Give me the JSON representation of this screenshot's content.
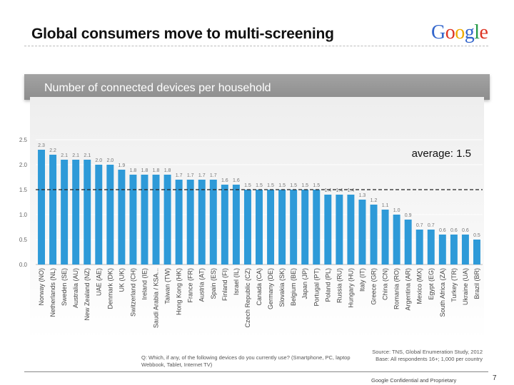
{
  "slide": {
    "title": "Global consumers move to multi-screening",
    "logo": {
      "letters": [
        "G",
        "o",
        "o",
        "g",
        "l",
        "e"
      ],
      "colors": [
        "#3366cc",
        "#dd3322",
        "#eeaa00",
        "#3366cc",
        "#229944",
        "#dd3322"
      ]
    },
    "subtitle": "Number of connected devices per household",
    "question": "Q: Which, if any, of the following devices do you currently use? (Smartphone, PC, laptop Webbook, Tablet, Internet TV)",
    "source": "Source: TNS, Global Enumeration Study, 2012",
    "base": "Base: All respondents 16+; 1,000 per country",
    "confidential": "Google Confidential and Proprietary",
    "page_number": "7"
  },
  "chart_data": {
    "type": "bar",
    "title": "Number of connected devices per household",
    "ylim": [
      0,
      2.5
    ],
    "yticks": [
      "0.0",
      "0.5",
      "1.0",
      "1.5",
      "2.0",
      "2.5"
    ],
    "bar_color": "#2e9ad8",
    "average": {
      "value": 1.5,
      "label": "average: 1.5"
    },
    "categories": [
      "Norway (NO)",
      "Netherlands (NL)",
      "Sweden (SE)",
      "Australia (AU)",
      "New Zealand (NZ)",
      "UAE (AE)",
      "Denmark (DK)",
      "UK (UK)",
      "Switzerland (CH)",
      "Ireland (IE)",
      "Saudi Arabia / KSA...",
      "Taiwan (TW)",
      "Hong Kong (HK)",
      "France (FR)",
      "Austria (AT)",
      "Spain (ES)",
      "Finland (FI)",
      "Israel (IL)",
      "Czech Republic (CZ)",
      "Canada (CA)",
      "Germany (DE)",
      "Slovakia (SK)",
      "Belgium (BE)",
      "Japan (JP)",
      "Portugal (PT)",
      "Poland (PL)",
      "Russia (RU)",
      "Hungary (HU)",
      "Italy (IT)",
      "Greece (GR)",
      "China (CN)",
      "Romania (RO)",
      "Argentina (AR)",
      "Mexico (MX)",
      "Egypt (EG)",
      "South Africa (ZA)",
      "Turkey (TR)",
      "Ukraine (UA)",
      "Brazil (BR)"
    ],
    "values": [
      2.3,
      2.2,
      2.1,
      2.1,
      2.1,
      2.0,
      2.0,
      1.9,
      1.8,
      1.8,
      1.8,
      1.8,
      1.7,
      1.7,
      1.7,
      1.7,
      1.6,
      1.6,
      1.5,
      1.5,
      1.5,
      1.5,
      1.5,
      1.5,
      1.5,
      1.4,
      1.4,
      1.4,
      1.3,
      1.2,
      1.1,
      1.0,
      0.9,
      0.7,
      0.7,
      0.6,
      0.6,
      0.6,
      0.5
    ],
    "labels": [
      "2.3",
      "2.2",
      "2.1",
      "2.1",
      "2.1",
      "2.0",
      "2.0",
      "1.9",
      "1.8",
      "1.8",
      "1.8",
      "1.8",
      "1.7",
      "1.7",
      "1.7",
      "1.7",
      "1.6",
      "1.6",
      "1.5",
      "1.5",
      "1.5",
      "1.5",
      "1.5",
      "1.5",
      "1.5",
      "1.4",
      "1.4",
      "1.4",
      "1.3",
      "1.2",
      "1.1",
      "1.0",
      "0.9",
      "0.7",
      "0.7",
      "0.6",
      "0.6",
      "0.6",
      "0.5"
    ]
  }
}
